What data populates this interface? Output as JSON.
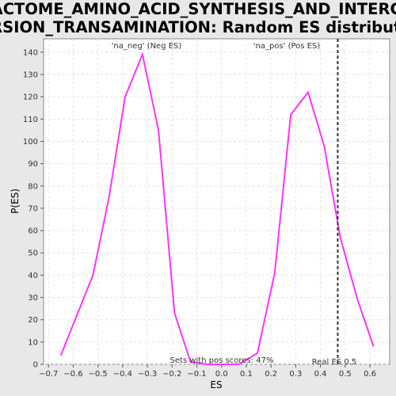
{
  "chart_data": {
    "type": "line",
    "title_line1": "REACTOME_AMINO_ACID_SYNTHESIS_AND_INTERCON",
    "title_line2": "VERSION_TRANSAMINATION: Random ES distribution",
    "xlabel": "ES",
    "ylabel": "P(ES)",
    "xlim": [
      -0.72,
      0.68
    ],
    "ylim": [
      0,
      146
    ],
    "x_ticks": [
      -0.7,
      -0.6,
      -0.5,
      -0.4,
      -0.3,
      -0.2,
      -0.1,
      0.0,
      0.1,
      0.2,
      0.3,
      0.4,
      0.5,
      0.6
    ],
    "x_tick_labels": [
      "−0.7",
      "−0.6",
      "−0.5",
      "−0.4",
      "−0.3",
      "−0.2",
      "−0.1",
      "0.0",
      "0.1",
      "0.2",
      "0.3",
      "0.4",
      "0.5",
      "0.6"
    ],
    "y_ticks": [
      0,
      10,
      20,
      30,
      40,
      50,
      60,
      70,
      80,
      90,
      100,
      110,
      120,
      130,
      140
    ],
    "grid": true,
    "series": [
      {
        "color": "#ff33ff",
        "points": [
          [
            -0.65,
            4
          ],
          [
            -0.52,
            40
          ],
          [
            -0.455,
            75
          ],
          [
            -0.39,
            120
          ],
          [
            -0.32,
            139
          ],
          [
            -0.255,
            105
          ],
          [
            -0.19,
            23
          ],
          [
            -0.125,
            1
          ],
          [
            -0.06,
            0
          ],
          [
            0.0,
            0
          ],
          [
            0.07,
            0
          ],
          [
            0.145,
            5
          ],
          [
            0.215,
            41
          ],
          [
            0.28,
            112
          ],
          [
            0.35,
            122
          ],
          [
            0.415,
            98
          ],
          [
            0.48,
            57
          ],
          [
            0.55,
            29
          ],
          [
            0.615,
            8
          ]
        ]
      }
    ],
    "real_es": 0.47,
    "real_es_label": "Real ES 0.5",
    "pos_scores_label": "Sets with pos scores: 47%",
    "neg_label": "'na_neg' (Neg ES)",
    "neg_label_color": "#4444cc",
    "pos_label": "'na_pos' (Pos ES)",
    "pos_label_color": "#cc3333"
  }
}
